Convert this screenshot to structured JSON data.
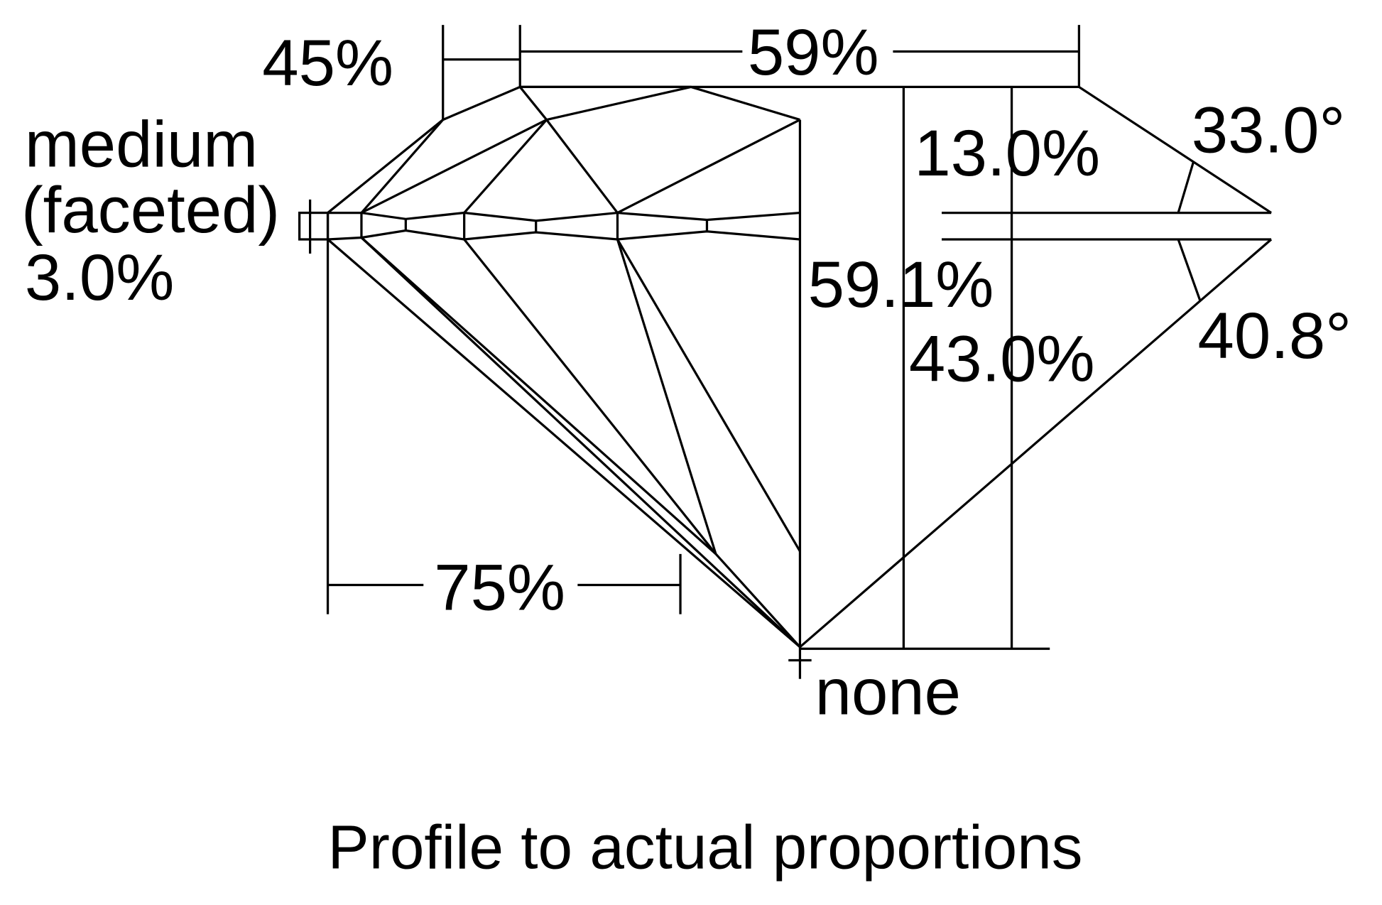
{
  "labels": {
    "girdle_thickness": "medium",
    "girdle_finish": "(faceted)",
    "girdle_percent": "3.0%",
    "star_length": "45%",
    "table": "59%",
    "crown_height": "13.0%",
    "total_depth": "59.1%",
    "pavilion_depth": "43.0%",
    "crown_angle": "33.0°",
    "pavilion_angle": "40.8°",
    "lower_half": "75%",
    "culet": "none"
  },
  "caption": "Profile to actual proportions",
  "colors": {
    "line": "#000000",
    "background": "#ffffff"
  }
}
